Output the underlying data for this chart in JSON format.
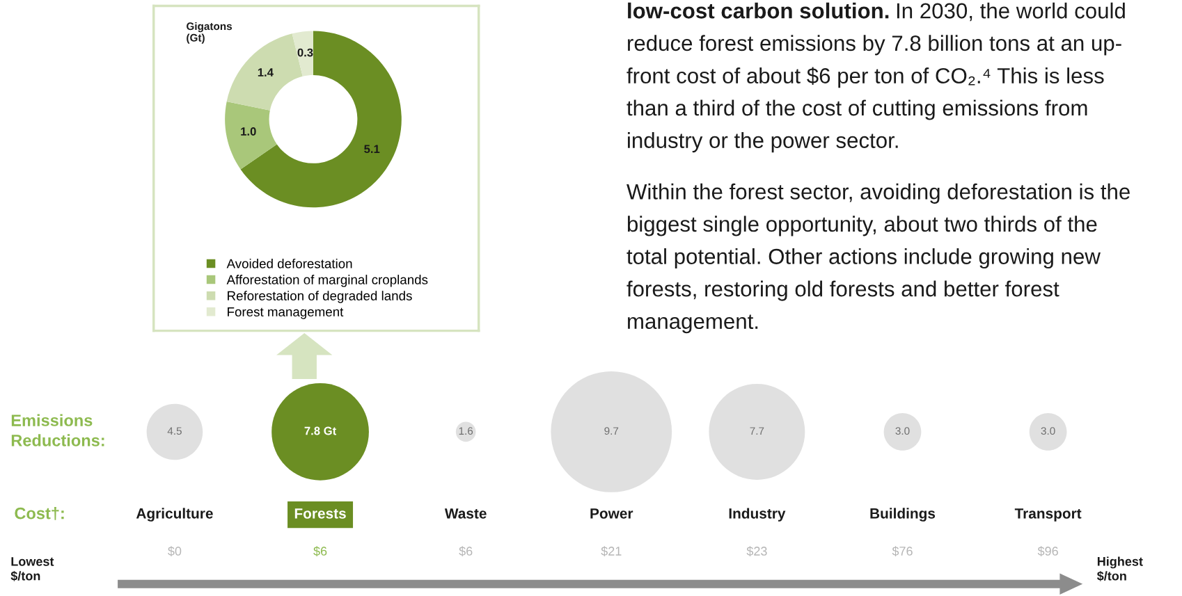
{
  "chart_data": [
    {
      "type": "donut",
      "title": "Gigatons\n(Gt)",
      "categories": [
        "Avoided deforestation",
        "Afforestation of marginal croplands",
        "Reforestation of degraded lands",
        "Forest management"
      ],
      "values": [
        5.1,
        1.0,
        1.4,
        0.3
      ],
      "colors": [
        "#6b8e23",
        "#a9c77a",
        "#cddcb0",
        "#e2ead0"
      ],
      "value_labels": [
        "5.1",
        "1.0",
        "1.4",
        "0.3"
      ],
      "legend": "bottom"
    },
    {
      "type": "other",
      "annotations": [
        "low-cost carbon solution.",
        "In 2030, the world could\nreduce forest emissions by 7.8 billion tons at an up-\nfront cost of about $6 per ton of CO₂.⁴ This is less\nthan a third of the cost of cutting emissions from\nindustry or the power sector.",
        "Within the forest sector, avoiding deforestation is the\nbiggest single opportunity, about two thirds of the\ntotal potential. Other actions include growing new\nforests, restoring old forests and better forest\nmanagement."
      ]
    },
    {
      "type": "other",
      "categories": [
        "Agriculture",
        "Forests",
        "Waste",
        "Power",
        "Industry",
        "Buildings",
        "Transport"
      ],
      "values": [
        4.5,
        7.8,
        1.6,
        9.7,
        7.7,
        3.0,
        3.0
      ],
      "value_labels": [
        "4.5",
        "7.8 Gt",
        "1.6",
        "9.7",
        "7.7",
        "3.0",
        "3.0"
      ],
      "colors": [
        "#e0e0e0",
        "#6b8e23",
        "#e0e0e0",
        "#e0e0e0",
        "#e0e0e0",
        "#e0e0e0",
        "#e0e0e0"
      ],
      "annotations": [
        "Emissions\nReductions:",
        "Cost†:",
        "$0",
        "$6",
        "$6",
        "$21",
        "$23",
        "$76",
        "$96",
        "Lowest\n$/ton",
        "Highest\n$/ton"
      ]
    }
  ]
}
